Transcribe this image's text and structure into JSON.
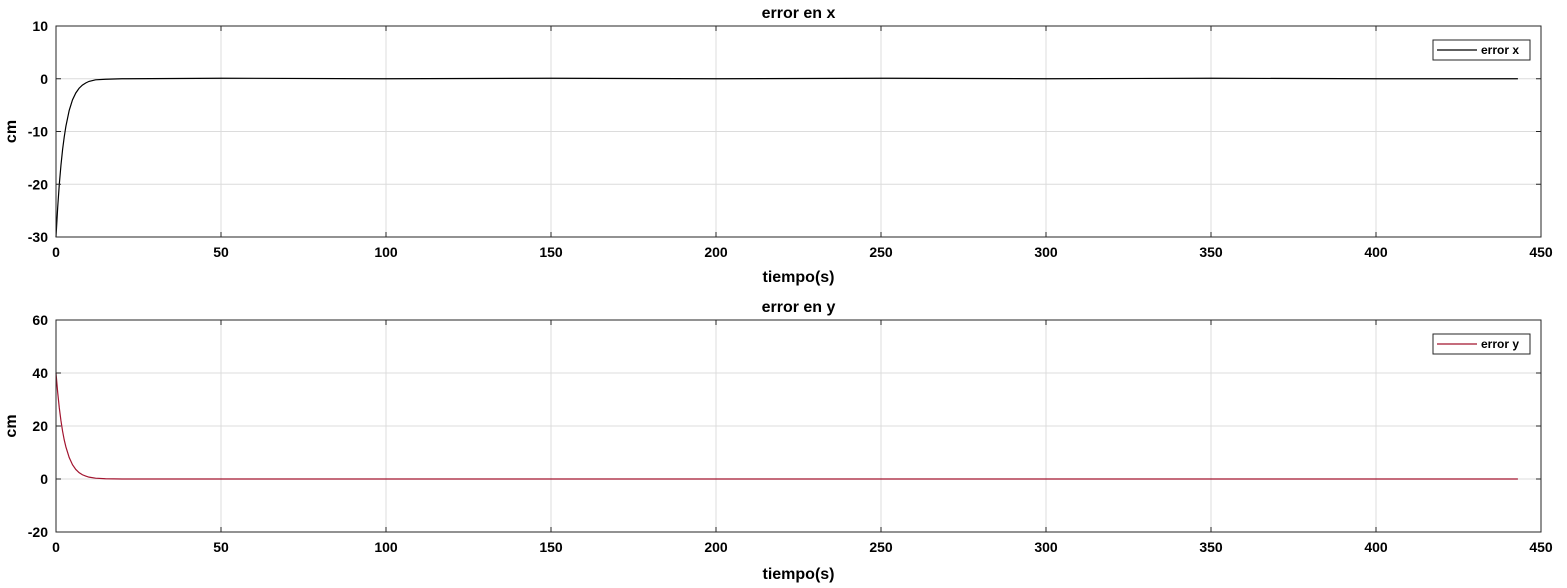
{
  "chart_data": [
    {
      "type": "line",
      "title": "error en x",
      "xlabel": "tiempo(s)",
      "ylabel": "cm",
      "xlim": [
        0,
        450
      ],
      "ylim": [
        -30,
        10
      ],
      "xticks": [
        0,
        50,
        100,
        150,
        200,
        250,
        300,
        350,
        400,
        450
      ],
      "yticks": [
        -30,
        -20,
        -10,
        0,
        10
      ],
      "grid": true,
      "legend_position": "top-right",
      "series": [
        {
          "name": "error x",
          "color": "#000000",
          "x": [
            0,
            0.5,
            1,
            1.5,
            2,
            2.5,
            3,
            4,
            5,
            6,
            7,
            8,
            9,
            10,
            12,
            15,
            20,
            50,
            100,
            150,
            200,
            250,
            300,
            350,
            400,
            443
          ],
          "y": [
            -30,
            -24.5,
            -20,
            -16.4,
            -13.4,
            -11.0,
            -9.0,
            -6.0,
            -4.0,
            -2.7,
            -1.8,
            -1.2,
            -0.8,
            -0.5,
            -0.2,
            -0.1,
            0,
            0.1,
            0,
            0.1,
            0,
            0.1,
            0,
            0.1,
            0,
            0
          ]
        }
      ]
    },
    {
      "type": "line",
      "title": "error en y",
      "xlabel": "tiempo(s)",
      "ylabel": "cm",
      "xlim": [
        0,
        450
      ],
      "ylim": [
        -20,
        60
      ],
      "xticks": [
        0,
        50,
        100,
        150,
        200,
        250,
        300,
        350,
        400,
        450
      ],
      "yticks": [
        -20,
        0,
        20,
        40,
        60
      ],
      "grid": true,
      "legend_position": "top-right",
      "series": [
        {
          "name": "error y",
          "color": "#a2142f",
          "x": [
            0,
            0.5,
            1,
            1.5,
            2,
            2.5,
            3,
            4,
            5,
            6,
            7,
            8,
            9,
            10,
            12,
            15,
            20,
            100,
            200,
            300,
            400,
            443
          ],
          "y": [
            40,
            32.8,
            26.8,
            22.0,
            18.0,
            14.7,
            12.1,
            8.1,
            5.4,
            3.6,
            2.4,
            1.6,
            1.1,
            0.7,
            0.3,
            0.1,
            0,
            0,
            0,
            0,
            0,
            0
          ]
        }
      ]
    }
  ]
}
